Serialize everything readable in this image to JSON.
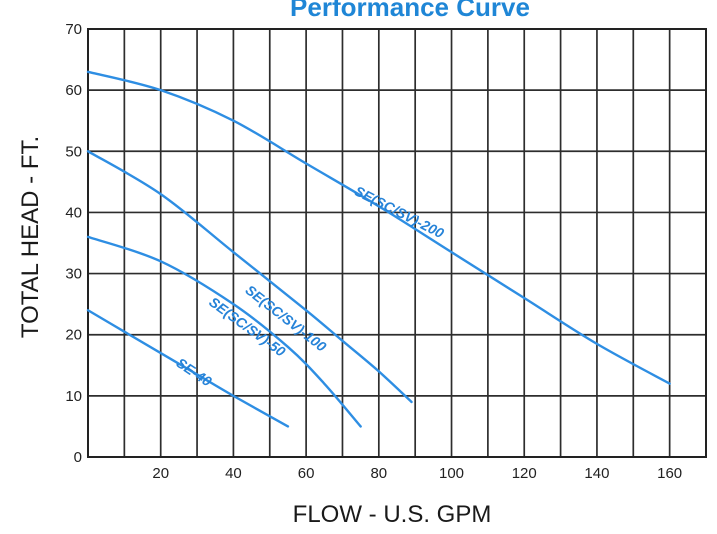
{
  "chart_data": {
    "type": "line",
    "title": "Performance Curve",
    "xlabel": "FLOW - U.S. GPM",
    "ylabel": "TOTAL HEAD - FT.",
    "xlim": [
      0,
      170
    ],
    "ylim": [
      0,
      70
    ],
    "grid": true,
    "x_ticks": [
      20,
      40,
      60,
      80,
      100,
      120,
      140,
      160
    ],
    "y_ticks": [
      0,
      10,
      20,
      30,
      40,
      50,
      60,
      70
    ],
    "series": [
      {
        "name": "SE(SC/SV)-200",
        "x": [
          0,
          20,
          40,
          60,
          80,
          100,
          120,
          140,
          160
        ],
        "y": [
          63,
          60,
          55,
          48,
          41,
          33.5,
          26,
          18.5,
          12
        ]
      },
      {
        "name": "SE(SC/SV)-100",
        "x": [
          0,
          20,
          40,
          60,
          70,
          80,
          89
        ],
        "y": [
          50,
          43,
          33.5,
          24,
          19,
          14,
          9
        ]
      },
      {
        "name": "SE(SC/SV)-50",
        "x": [
          0,
          20,
          40,
          55,
          65,
          75
        ],
        "y": [
          36,
          32,
          25,
          18,
          12,
          5
        ]
      },
      {
        "name": "SE-40",
        "x": [
          0,
          10,
          20,
          30,
          40,
          55
        ],
        "y": [
          24,
          20.5,
          17,
          13.5,
          10,
          5
        ]
      }
    ],
    "colors": {
      "series": "#2e8ee3",
      "grid": "#2d2d2d",
      "title": "#1f86d6",
      "text": "#1a1a1a"
    }
  }
}
